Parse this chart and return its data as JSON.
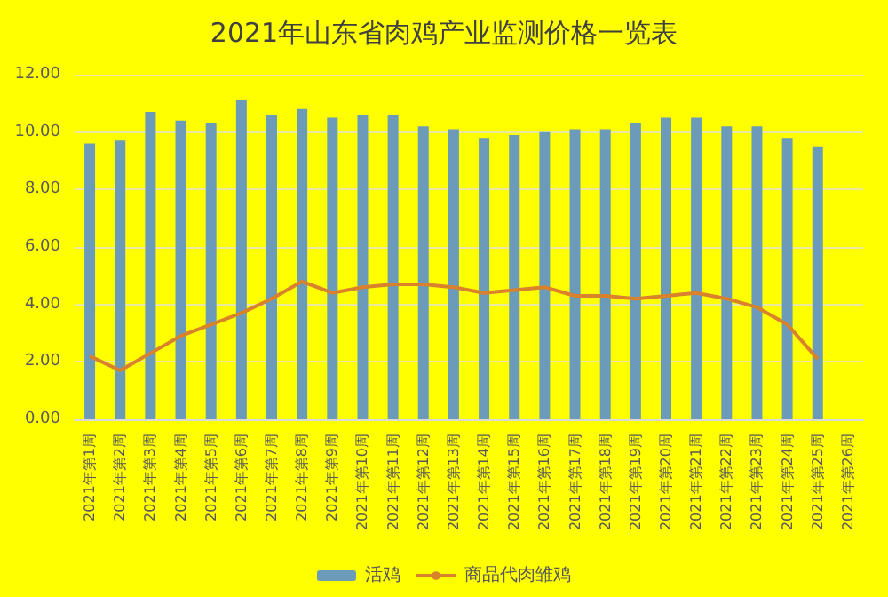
{
  "chart_data": {
    "type": "bar",
    "title": "2021年山东省肉鸡产业监测价格一览表",
    "categories": [
      "2021年第1周",
      "2021年第2周",
      "2021年第3周",
      "2021年第4周",
      "2021年第5周",
      "2021年第6周",
      "2021年第7周",
      "2021年第8周",
      "2021年第9周",
      "2021年第10周",
      "2021年第11周",
      "2021年第12周",
      "2021年第13周",
      "2021年第14周",
      "2021年第15周",
      "2021年第16周",
      "2021年第17周",
      "2021年第18周",
      "2021年第19周",
      "2021年第20周",
      "2021年第21周",
      "2021年第22周",
      "2021年第23周",
      "2021年第24周",
      "2021年第25周",
      "2021年第26周"
    ],
    "series": [
      {
        "name": "活鸡",
        "color": "#6b9bb8",
        "values": [
          9.6,
          9.7,
          10.7,
          10.4,
          10.3,
          11.1,
          10.6,
          10.8,
          10.5,
          10.6,
          10.6,
          10.2,
          10.1,
          9.8,
          9.9,
          10.0,
          10.1,
          10.1,
          10.3,
          10.5,
          10.5,
          10.2,
          10.2,
          9.8,
          9.5,
          null
        ]
      },
      {
        "name": "商品代肉雏鸡",
        "type": "line",
        "color": "#d9822b",
        "values": [
          2.2,
          1.7,
          2.3,
          2.9,
          3.3,
          3.7,
          4.2,
          4.8,
          4.4,
          4.6,
          4.7,
          4.7,
          4.6,
          4.4,
          4.5,
          4.6,
          4.3,
          4.3,
          4.2,
          4.3,
          4.4,
          4.2,
          3.9,
          3.3,
          2.1,
          null
        ]
      }
    ],
    "ylim": [
      0,
      12
    ],
    "yticks": [
      {
        "value": 0,
        "label": "0.00"
      },
      {
        "value": 2,
        "label": "2.00"
      },
      {
        "value": 4,
        "label": "4.00"
      },
      {
        "value": 6,
        "label": "6.00"
      },
      {
        "value": 8,
        "label": "8.00"
      },
      {
        "value": 10,
        "label": "10.00"
      },
      {
        "value": 12,
        "label": "12.00"
      }
    ],
    "grid": "y",
    "legend": "bottom",
    "marker": "none"
  }
}
